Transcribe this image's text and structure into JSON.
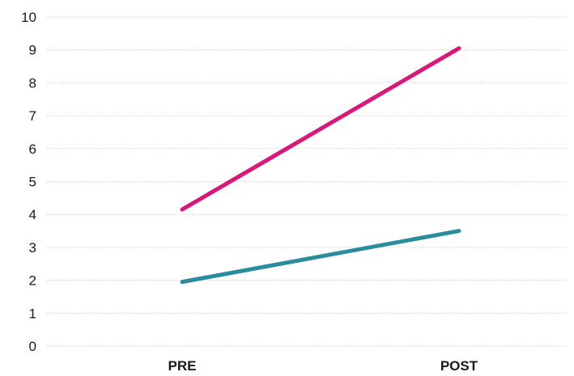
{
  "chart_data": {
    "type": "line",
    "title": "",
    "xlabel": "",
    "ylabel": "",
    "categories": [
      "PRE",
      "POST"
    ],
    "ylim": [
      0,
      10
    ],
    "yticks": [
      0,
      1,
      2,
      3,
      4,
      5,
      6,
      7,
      8,
      9,
      10
    ],
    "grid": true,
    "legend": "none",
    "series": [
      {
        "values": [
          4.15,
          9.05
        ],
        "color": "#d6197a"
      },
      {
        "values": [
          1.95,
          3.5
        ],
        "color": "#2a8c9c"
      }
    ]
  }
}
